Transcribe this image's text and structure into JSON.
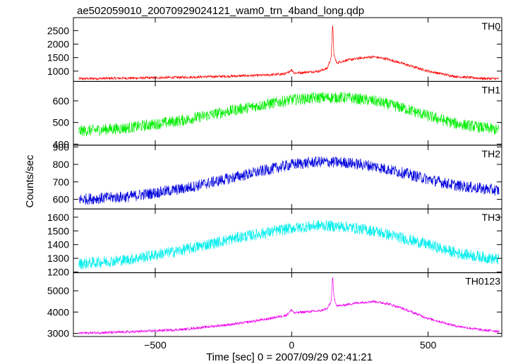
{
  "chart_data": {
    "type": "line",
    "title": "ae502059010_20070929024121_wam0_trn_4band_long.qdp",
    "xlabel": "Time [sec] 0 = 2007/09/29 02:41:21",
    "ylabel": "Counts/sec",
    "xlim": [
      -800,
      770
    ],
    "x_ticks": [
      -500,
      0,
      500
    ],
    "grid": false,
    "panels": [
      {
        "name": "TH0",
        "color": "#ff0000",
        "ylim": [
          620,
          2980
        ],
        "y_ticks": [
          1000,
          1500,
          2000,
          2500
        ],
        "x": [
          -780,
          -600,
          -400,
          -200,
          -100,
          -20,
          0,
          10,
          40,
          100,
          130,
          145,
          150,
          155,
          165,
          180,
          200,
          250,
          300,
          350,
          400,
          450,
          500,
          600,
          700,
          760
        ],
        "y": [
          720,
          740,
          770,
          820,
          850,
          900,
          1050,
          930,
          950,
          1000,
          1100,
          1500,
          2800,
          1600,
          1300,
          1350,
          1400,
          1480,
          1530,
          1450,
          1300,
          1150,
          1000,
          800,
          730,
          720
        ]
      },
      {
        "name": "TH1",
        "color": "#00ee00",
        "ylim": [
          395,
          690
        ],
        "y_ticks": [
          400,
          500,
          600
        ],
        "x": [
          -780,
          -600,
          -400,
          -200,
          0,
          100,
          200,
          300,
          400,
          500,
          600,
          760
        ],
        "y": [
          460,
          475,
          510,
          560,
          605,
          615,
          615,
          600,
          570,
          530,
          495,
          465
        ]
      },
      {
        "name": "TH2",
        "color": "#0000dd",
        "ylim": [
          545,
          910
        ],
        "y_ticks": [
          600,
          700,
          800,
          900
        ],
        "x": [
          -780,
          -600,
          -400,
          -200,
          0,
          100,
          200,
          300,
          400,
          500,
          600,
          760
        ],
        "y": [
          600,
          615,
          660,
          730,
          800,
          815,
          810,
          790,
          755,
          715,
          680,
          650
        ]
      },
      {
        "name": "TH3",
        "color": "#00eeee",
        "ylim": [
          1195,
          1660
        ],
        "y_ticks": [
          1200,
          1300,
          1400,
          1500,
          1600
        ],
        "x": [
          -780,
          -600,
          -400,
          -200,
          0,
          100,
          200,
          300,
          400,
          500,
          600,
          760
        ],
        "y": [
          1260,
          1290,
          1360,
          1450,
          1520,
          1540,
          1530,
          1500,
          1450,
          1400,
          1340,
          1290
        ]
      },
      {
        "name": "TH0123",
        "color": "#ee00ee",
        "ylim": [
          2850,
          5850
        ],
        "y_ticks": [
          3000,
          4000,
          5000
        ],
        "x": [
          -780,
          -600,
          -400,
          -200,
          -100,
          -20,
          0,
          10,
          40,
          100,
          130,
          145,
          150,
          155,
          165,
          180,
          200,
          250,
          300,
          350,
          400,
          450,
          500,
          600,
          700,
          760
        ],
        "y": [
          3010,
          3060,
          3180,
          3450,
          3650,
          3850,
          4100,
          3950,
          4000,
          4050,
          4150,
          4500,
          5700,
          4700,
          4300,
          4300,
          4350,
          4450,
          4500,
          4400,
          4200,
          3950,
          3700,
          3350,
          3150,
          3100
        ]
      }
    ]
  }
}
